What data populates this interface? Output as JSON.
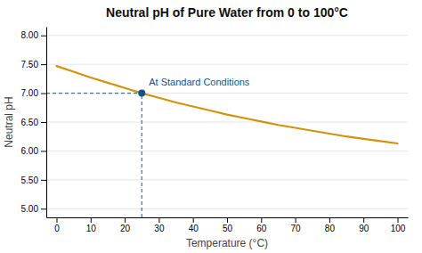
{
  "chart_data": {
    "type": "line",
    "title": "Neutral pH of Pure Water from 0 to 100°C",
    "x_label": "Temperature (°C)",
    "y_label": "Neutral pH",
    "x": [
      0,
      5,
      10,
      15,
      20,
      25,
      30,
      35,
      40,
      45,
      50,
      55,
      60,
      65,
      70,
      75,
      80,
      85,
      90,
      95,
      100
    ],
    "values": [
      7.47,
      7.37,
      7.27,
      7.18,
      7.09,
      7.0,
      6.92,
      6.84,
      6.77,
      6.7,
      6.63,
      6.57,
      6.51,
      6.45,
      6.4,
      6.35,
      6.3,
      6.25,
      6.21,
      6.17,
      6.13
    ],
    "color": "#D4920A",
    "xlim": [
      -3,
      103
    ],
    "ylim": [
      4.85,
      8.15
    ],
    "xticks": [
      0,
      10,
      20,
      30,
      40,
      50,
      60,
      70,
      80,
      90,
      100
    ],
    "yticks": [
      {
        "value": 5.0,
        "label": "5.00"
      },
      {
        "value": 5.5,
        "label": "5.50"
      },
      {
        "value": 6.0,
        "label": "6.00"
      },
      {
        "value": 6.5,
        "label": "6.50"
      },
      {
        "value": 7.0,
        "label": "7.00"
      },
      {
        "value": 7.5,
        "label": "7.50"
      },
      {
        "value": 8.0,
        "label": "8.00"
      }
    ],
    "grid": true,
    "annotations": [
      {
        "text": "At Standard Conditions",
        "x": 25,
        "y": 7.0,
        "color": "#1B4F8A"
      }
    ]
  }
}
